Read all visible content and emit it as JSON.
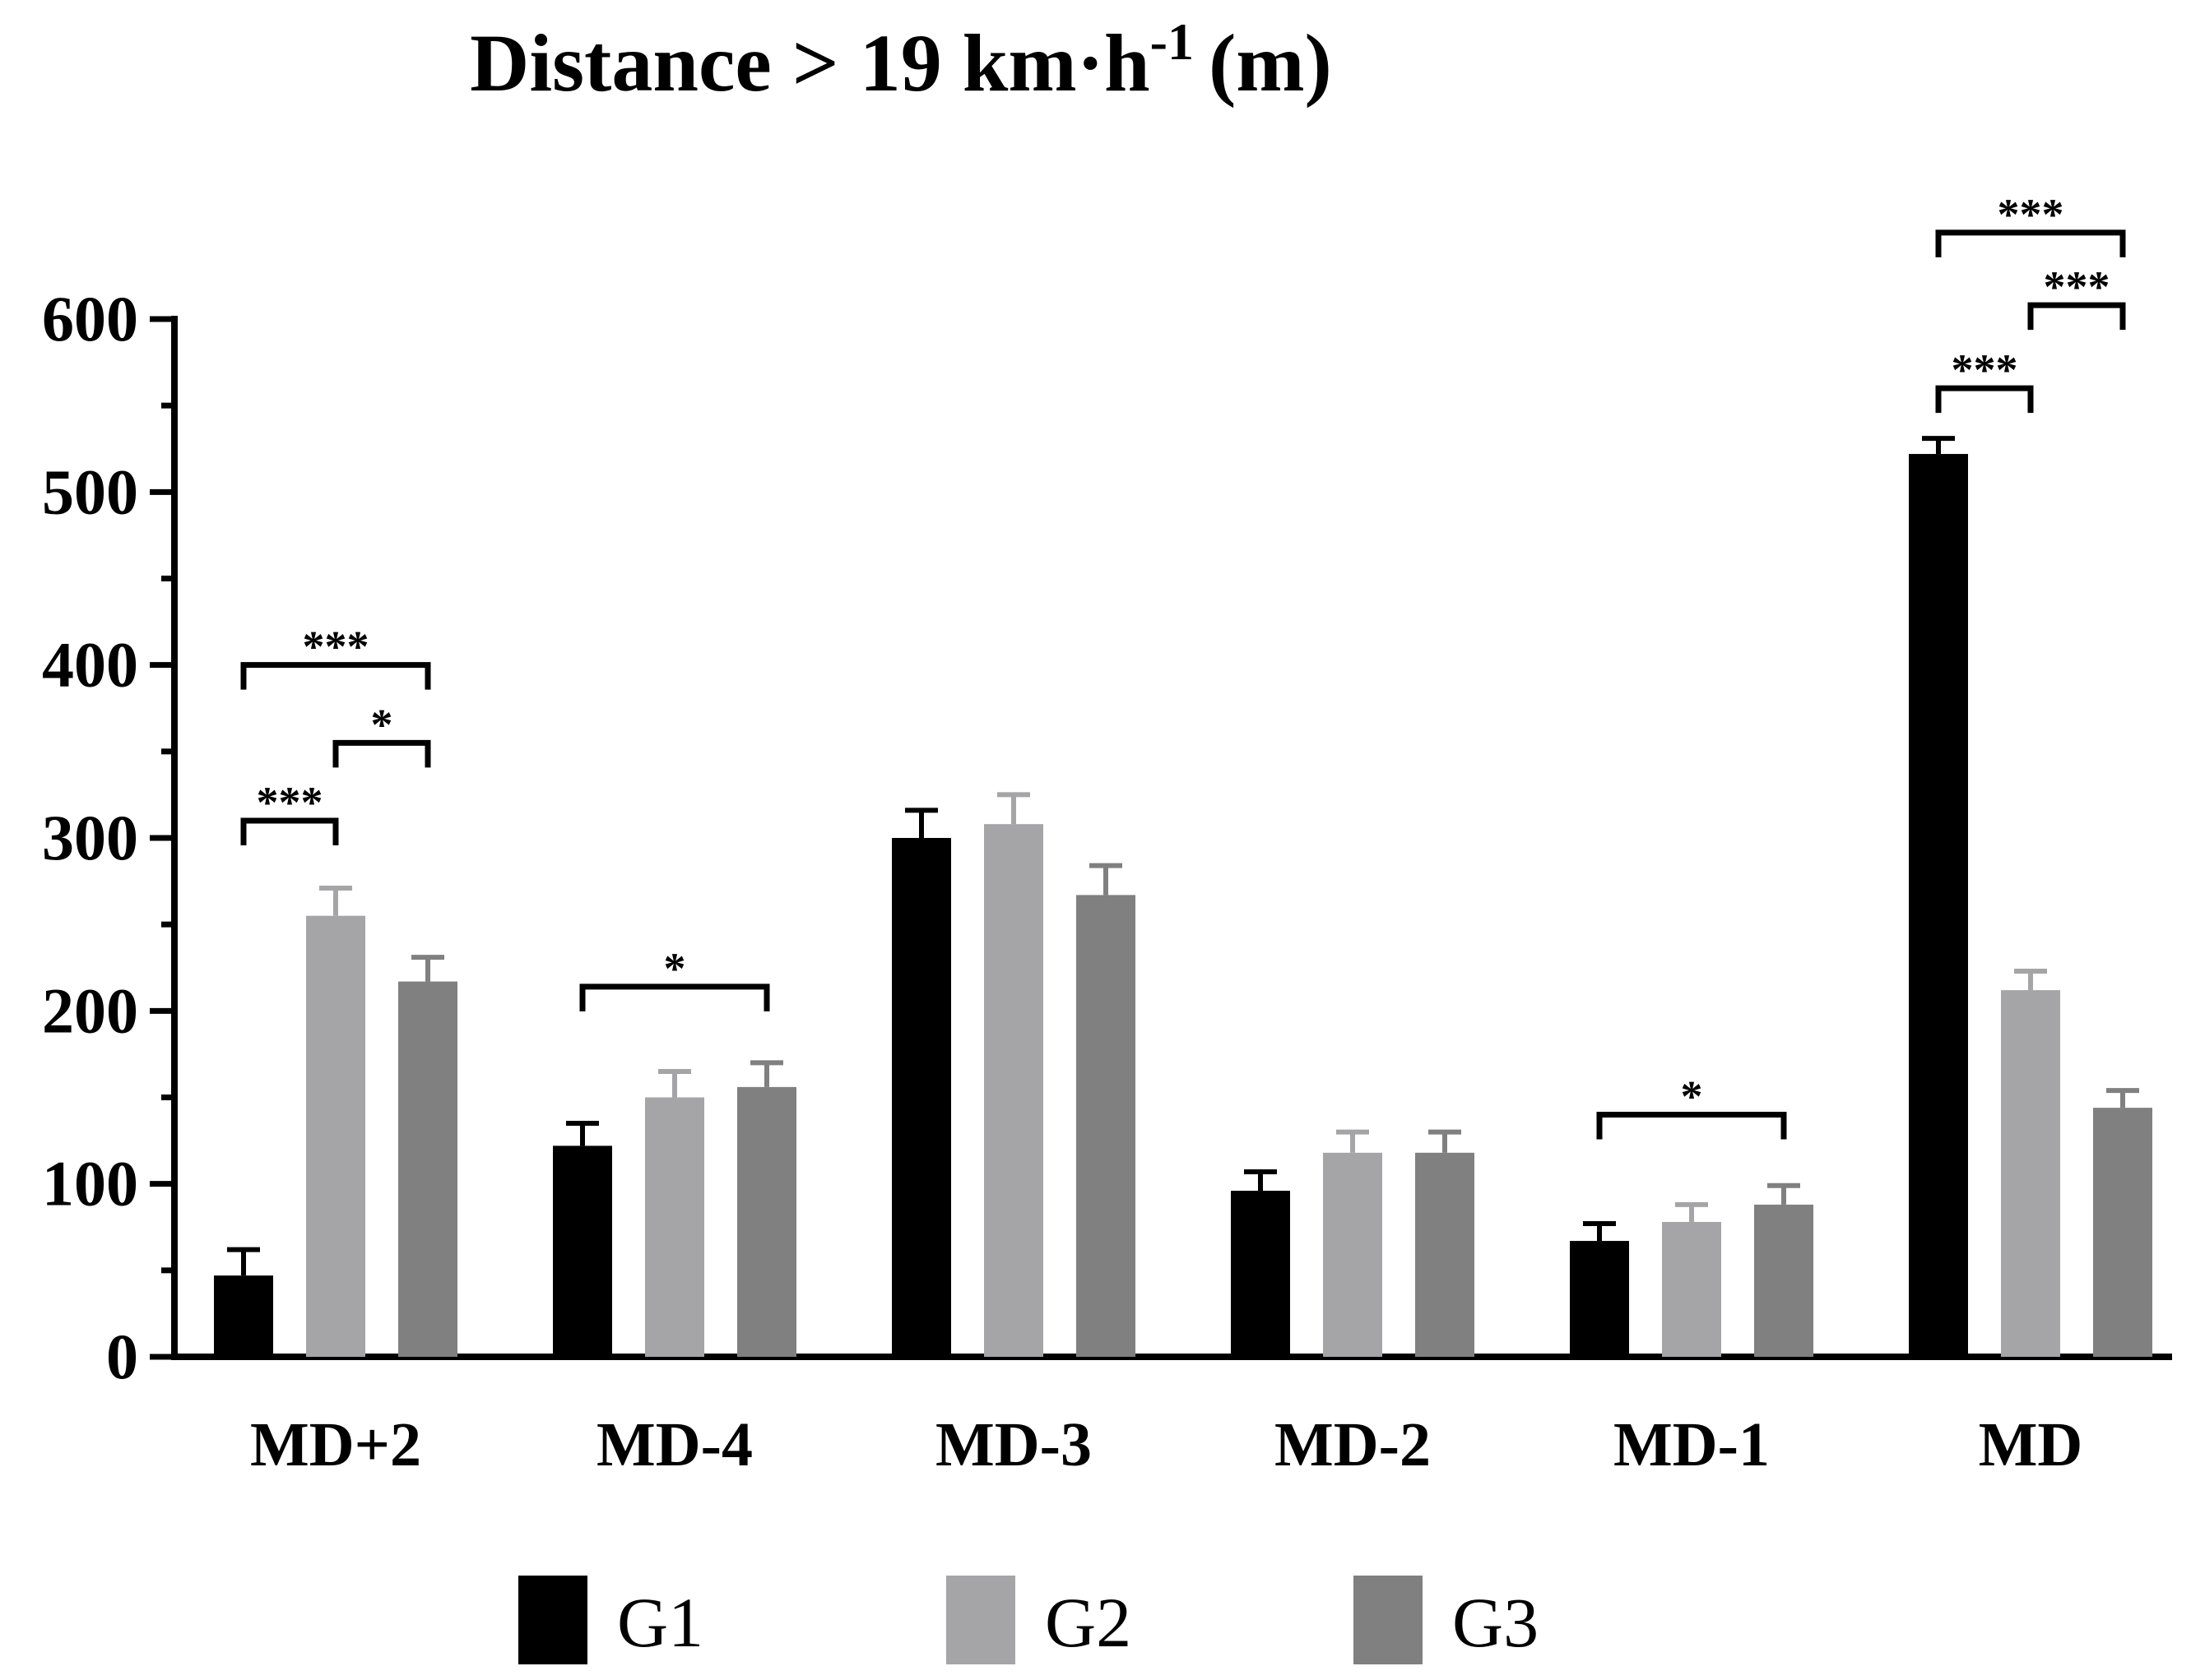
{
  "chart_data": {
    "type": "bar",
    "title_main": "Distance > 19 km",
    "title_dot": "·",
    "title_h": "h",
    "title_sup": "-1",
    "title_unit": "(m)",
    "ylim": [
      0,
      600
    ],
    "yticks": [
      0,
      100,
      200,
      300,
      400,
      500,
      600
    ],
    "categories": [
      "MD+2",
      "MD-4",
      "MD-3",
      "MD-2",
      "MD-1",
      "MD"
    ],
    "series": [
      {
        "name": "G1",
        "color": "#000000",
        "values": [
          47,
          122,
          300,
          96,
          67,
          522
        ],
        "errors": [
          15,
          13,
          16,
          11,
          10,
          9
        ]
      },
      {
        "name": "G2",
        "color": "#a5a5a8",
        "values": [
          255,
          150,
          308,
          118,
          78,
          212
        ],
        "errors": [
          16,
          15,
          17,
          12,
          10,
          11
        ]
      },
      {
        "name": "G3",
        "color": "#808080",
        "values": [
          217,
          156,
          267,
          118,
          88,
          144
        ],
        "errors": [
          14,
          14,
          17,
          12,
          11,
          10
        ]
      }
    ],
    "significance": [
      {
        "category": "MD+2",
        "from": "G1",
        "to": "G3",
        "label": "***",
        "level": 400
      },
      {
        "category": "MD+2",
        "from": "G2",
        "to": "G3",
        "label": "*",
        "level": 355
      },
      {
        "category": "MD+2",
        "from": "G1",
        "to": "G2",
        "label": "***",
        "level": 310
      },
      {
        "category": "MD-4",
        "from": "G1",
        "to": "G3",
        "label": "*",
        "level": 214
      },
      {
        "category": "MD-1",
        "from": "G1",
        "to": "G3",
        "label": "*",
        "level": 140
      },
      {
        "category": "MD",
        "from": "G1",
        "to": "G3",
        "label": "***",
        "level": 650
      },
      {
        "category": "MD",
        "from": "G2",
        "to": "G3",
        "label": "***",
        "level": 608
      },
      {
        "category": "MD",
        "from": "G1",
        "to": "G2",
        "label": "***",
        "level": 560
      }
    ]
  }
}
